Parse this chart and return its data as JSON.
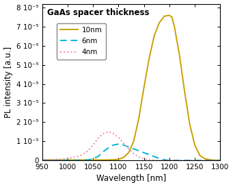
{
  "title": "GaAs spacer thickness",
  "xlabel": "Wavelength [nm]",
  "ylabel": "PL intensity [a.u.]",
  "xlim": [
    950,
    1300
  ],
  "ylim": [
    0,
    8.2e-05
  ],
  "yticks": [
    0,
    1e-05,
    2e-05,
    3e-05,
    4e-05,
    5e-05,
    6e-05,
    7e-05,
    8e-05
  ],
  "ytick_labels": [
    "0",
    "1 10⁻⁵",
    "2 10⁻⁵",
    "3 10⁻⁵",
    "4 10⁻⁵",
    "5 10⁻⁵",
    "6 10⁻⁵",
    "7 10⁻⁵",
    "8 10⁻⁵"
  ],
  "xticks": [
    950,
    1000,
    1050,
    1100,
    1150,
    1200,
    1250,
    1300
  ],
  "legend": [
    {
      "label": "10nm",
      "color": "#c8a000",
      "linestyle": "solid"
    },
    {
      "label": "6nm",
      "color": "#00b4d8",
      "linestyle": "dashed"
    },
    {
      "label": "4nm",
      "color": "#e88aaa",
      "linestyle": "dotted"
    }
  ],
  "line_10nm": {
    "x": [
      950,
      960,
      970,
      980,
      990,
      1000,
      1010,
      1020,
      1030,
      1040,
      1050,
      1060,
      1070,
      1080,
      1090,
      1100,
      1110,
      1120,
      1130,
      1140,
      1150,
      1160,
      1170,
      1180,
      1190,
      1200,
      1205,
      1210,
      1220,
      1230,
      1240,
      1250,
      1260,
      1270,
      1280,
      1290,
      1300
    ],
    "y": [
      2e-07,
      2e-07,
      2e-07,
      2e-07,
      2e-07,
      2e-07,
      2e-07,
      2e-07,
      2e-07,
      2e-07,
      2e-07,
      2e-07,
      2e-07,
      2e-07,
      3e-07,
      5e-07,
      1.5e-06,
      4e-06,
      1e-05,
      2.2e-05,
      3.8e-05,
      5.3e-05,
      6.5e-05,
      7.2e-05,
      7.55e-05,
      7.6e-05,
      7.5e-05,
      7e-05,
      5.5e-05,
      3.6e-05,
      1.9e-05,
      8e-06,
      2.5e-06,
      8e-07,
      3e-07,
      1e-07,
      5e-08
    ]
  },
  "line_6nm": {
    "x": [
      950,
      960,
      970,
      980,
      990,
      1000,
      1010,
      1020,
      1030,
      1040,
      1050,
      1060,
      1070,
      1080,
      1090,
      1100,
      1110,
      1120,
      1130,
      1140,
      1150,
      1160,
      1170,
      1180,
      1190,
      1200,
      1210,
      1220,
      1230,
      1240,
      1250,
      1260,
      1270,
      1280,
      1290,
      1300
    ],
    "y": [
      0,
      0,
      0,
      0,
      0,
      0,
      0,
      0,
      0,
      2e-07,
      8e-07,
      2e-06,
      4.5e-06,
      6.5e-06,
      8e-06,
      8.5e-06,
      8e-06,
      7e-06,
      6e-06,
      5e-06,
      4e-06,
      3e-06,
      2e-06,
      1e-06,
      3e-07,
      0,
      0,
      0,
      0,
      0,
      0,
      0,
      0,
      0,
      0,
      0
    ]
  },
  "line_4nm": {
    "x": [
      950,
      960,
      970,
      980,
      990,
      1000,
      1010,
      1020,
      1030,
      1040,
      1050,
      1060,
      1070,
      1080,
      1090,
      1100,
      1110,
      1120,
      1130,
      1140,
      1150,
      1160,
      1170,
      1180,
      1190,
      1200,
      1210,
      1220,
      1230,
      1240,
      1250,
      1260,
      1270,
      1280,
      1290,
      1300
    ],
    "y": [
      2e-07,
      3e-07,
      4e-07,
      5e-07,
      7e-07,
      1e-06,
      1.5e-06,
      2e-06,
      3e-06,
      5e-06,
      8e-06,
      1.15e-05,
      1.4e-05,
      1.5e-05,
      1.4e-05,
      1.2e-05,
      9e-06,
      6e-06,
      3.5e-06,
      1.8e-06,
      8e-07,
      3e-07,
      1e-07,
      5e-08,
      0,
      0,
      0,
      0,
      0,
      0,
      0,
      0,
      0,
      0,
      0,
      0
    ]
  },
  "background_color": "#ffffff",
  "title_fontsize": 8.5,
  "label_fontsize": 8.5,
  "tick_fontsize": 7.5,
  "legend_fontsize": 7.5
}
